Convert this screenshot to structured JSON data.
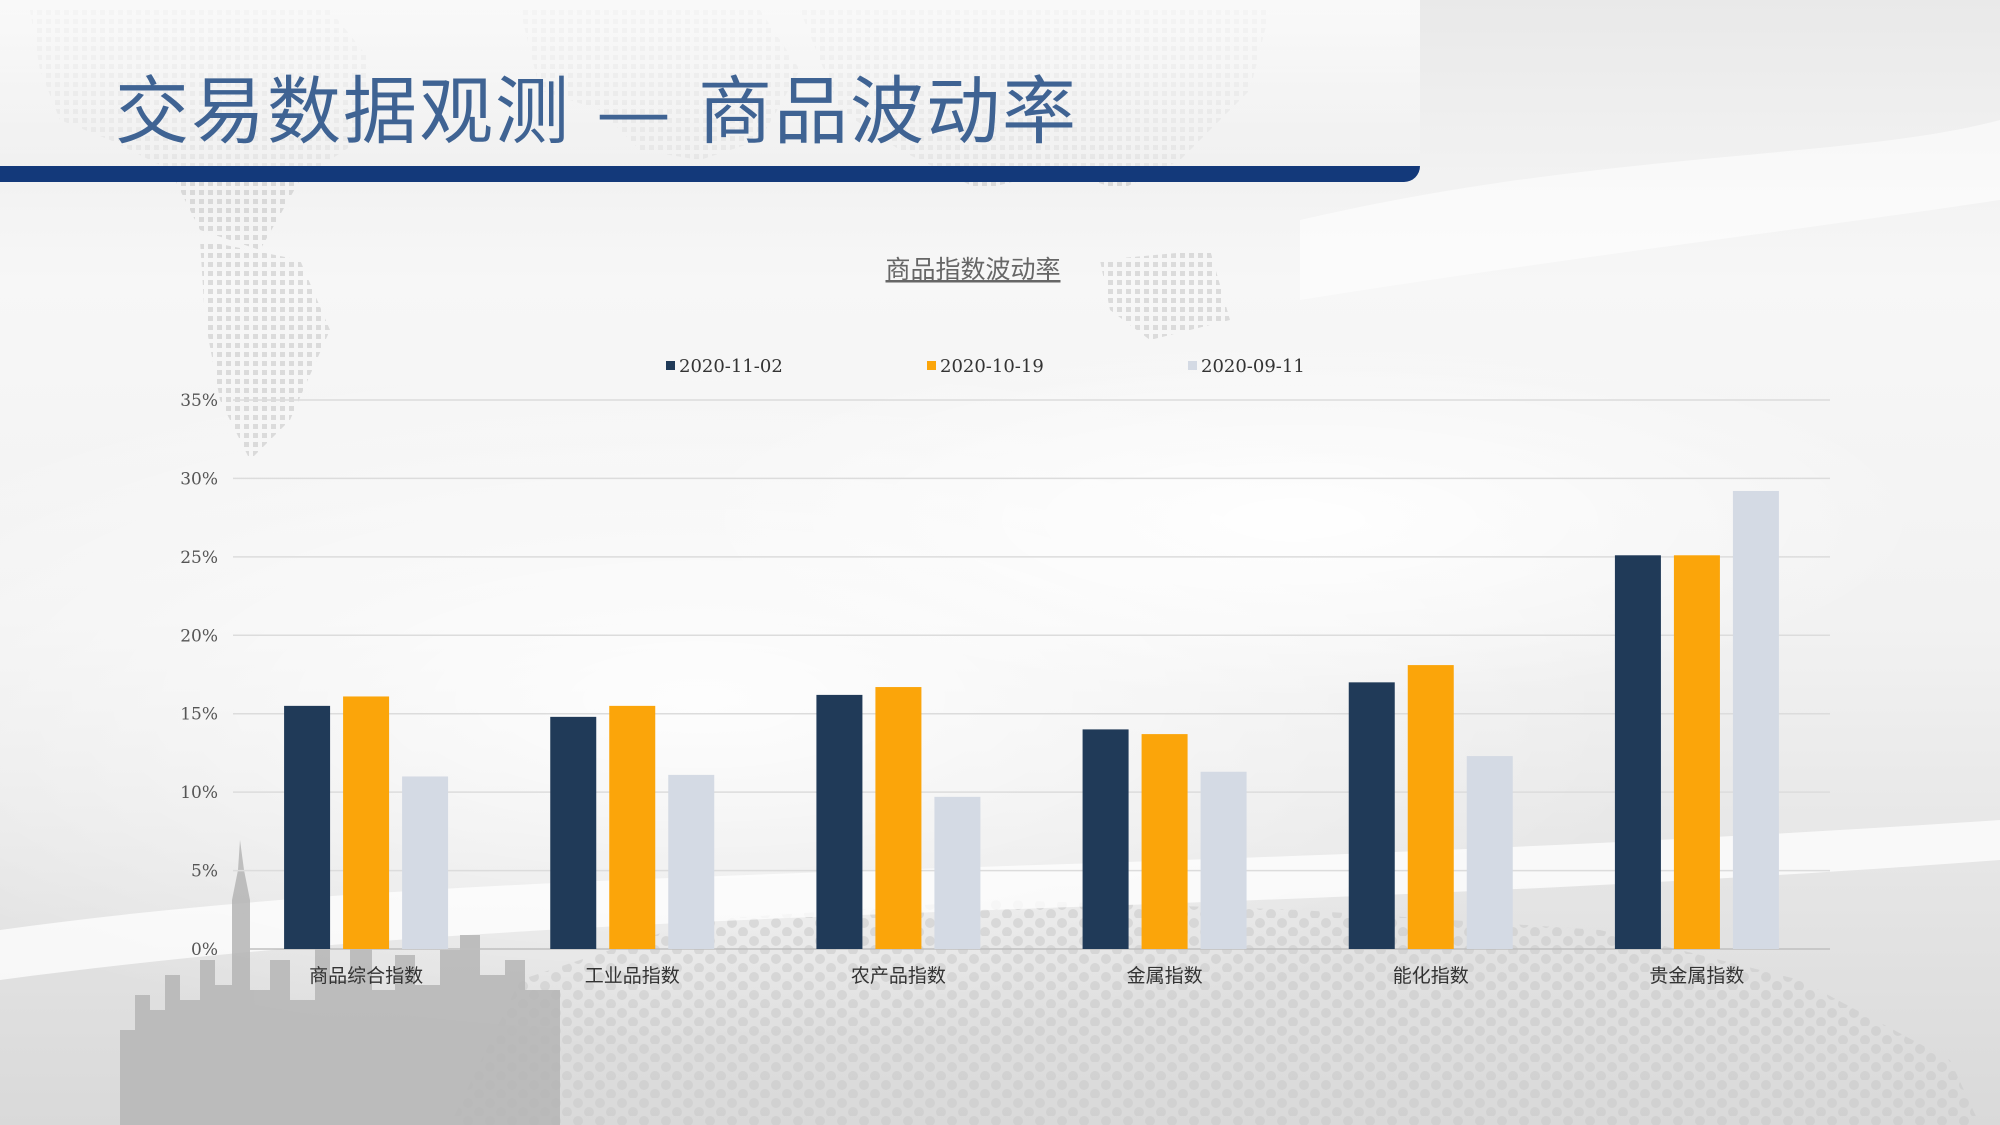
{
  "slide": {
    "title": "交易数据观测 — 商品波动率"
  },
  "colors": {
    "series_1": "#203a58",
    "series_2": "#fba50a",
    "series_3": "#d4dae4",
    "title_text": "#3f6393",
    "title_bar": "#13397a"
  },
  "chart_data": {
    "type": "bar",
    "title": "商品指数波动率",
    "categories": [
      "商品综合指数",
      "工业品指数",
      "农产品指数",
      "金属指数",
      "能化指数",
      "贵金属指数"
    ],
    "series": [
      {
        "name": "2020-11-02",
        "values": [
          15.5,
          14.8,
          16.2,
          14.0,
          17.0,
          25.1
        ]
      },
      {
        "name": "2020-10-19",
        "values": [
          16.1,
          15.5,
          16.7,
          13.7,
          18.1,
          25.1
        ]
      },
      {
        "name": "2020-09-11",
        "values": [
          11.0,
          11.1,
          9.7,
          11.3,
          12.3,
          29.2
        ]
      }
    ],
    "ylim": [
      0,
      35
    ],
    "y_ticks": [
      0,
      5,
      10,
      15,
      20,
      25,
      30,
      35
    ],
    "y_tick_labels": [
      "0%",
      "5%",
      "10%",
      "15%",
      "20%",
      "25%",
      "30%",
      "35%"
    ],
    "grid": true,
    "legend_position": "top-center"
  }
}
